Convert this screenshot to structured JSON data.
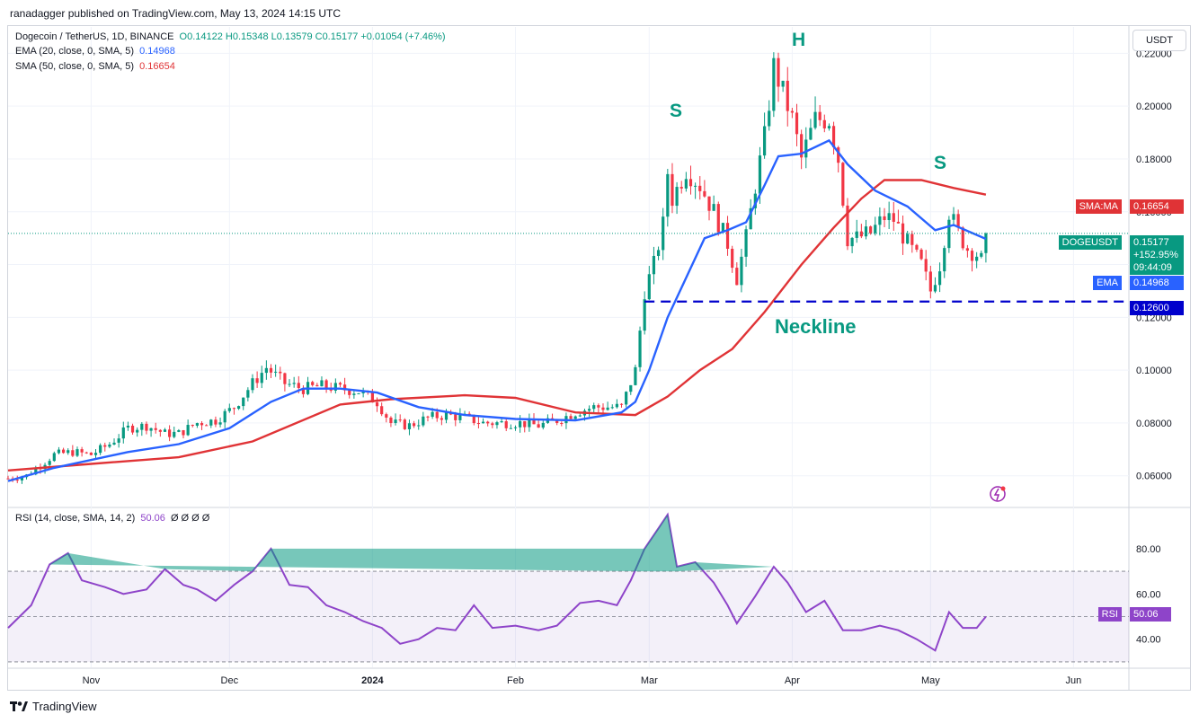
{
  "header": {
    "publisher": "ranadagger published on TradingView.com, May 13, 2024 14:15 UTC"
  },
  "legend": {
    "symbol": "Dogecoin / TetherUS, 1D, BINANCE",
    "ohlc": "O0.14122 H0.15348 L0.13579 C0.15177 +0.01054 (+7.46%)",
    "ema_label": "EMA (20, close, 0, SMA, 5)",
    "ema_value": "0.14968",
    "sma_label": "SMA (50, close, 0, SMA, 5)",
    "sma_value": "0.16654",
    "rsi_label": "RSI (14, close, SMA, 14, 2)",
    "rsi_value": "50.06",
    "rsi_extra": "Ø Ø Ø Ø"
  },
  "currency_button": "USDT",
  "tags": {
    "sma_name": "SMA:MA",
    "sma_price": "0.16654",
    "sym_name": "DOGEUSDT",
    "sym_price": "0.15177",
    "sym_change": "+152.95%",
    "sym_timer": "09:44:09",
    "ema_name": "EMA",
    "ema_price": "0.14968",
    "neck_price": "0.12600",
    "rsi_name": "RSI",
    "rsi_price": "50.06"
  },
  "annotations": {
    "left_shoulder": "S",
    "head": "H",
    "right_shoulder": "S",
    "neckline": "Neckline"
  },
  "colors": {
    "up": "#089981",
    "down": "#f23645",
    "ema": "#2962ff",
    "sma": "#e03336",
    "rsi": "#8e44c9",
    "neckline": "#0000cc",
    "grid": "#f0f3fa"
  },
  "branding": "TradingView",
  "chart_data": [
    {
      "type": "candlestick",
      "title": "Dogecoin / TetherUS, 1D, BINANCE",
      "y_ticks": [
        "0.06000",
        "0.08000",
        "0.10000",
        "0.12000",
        "0.14000",
        "0.16000",
        "0.18000",
        "0.20000",
        "0.22000"
      ],
      "x_ticks": [
        "Nov",
        "Dec",
        "2024",
        "Feb",
        "Mar",
        "Apr",
        "May",
        "Jun"
      ],
      "ylim": [
        0.048,
        0.23
      ],
      "x_range": [
        "2023-10-14",
        "2024-06-13"
      ],
      "price_close": [
        [
          "2023-10-14",
          0.059
        ],
        [
          "2023-10-18",
          0.06
        ],
        [
          "2023-10-21",
          0.064
        ],
        [
          "2023-10-24",
          0.068
        ],
        [
          "2023-10-28",
          0.069
        ],
        [
          "2023-11-01",
          0.068
        ],
        [
          "2023-11-05",
          0.072
        ],
        [
          "2023-11-09",
          0.078
        ],
        [
          "2023-11-13",
          0.079
        ],
        [
          "2023-11-17",
          0.076
        ],
        [
          "2023-11-20",
          0.076
        ],
        [
          "2023-11-24",
          0.08
        ],
        [
          "2023-11-28",
          0.081
        ],
        [
          "2023-12-02",
          0.086
        ],
        [
          "2023-12-06",
          0.095
        ],
        [
          "2023-12-09",
          0.101
        ],
        [
          "2023-12-13",
          0.095
        ],
        [
          "2023-12-17",
          0.093
        ],
        [
          "2023-12-21",
          0.094
        ],
        [
          "2023-12-25",
          0.093
        ],
        [
          "2023-12-29",
          0.092
        ],
        [
          "2024-01-02",
          0.088
        ],
        [
          "2024-01-05",
          0.08
        ],
        [
          "2024-01-09",
          0.079
        ],
        [
          "2024-01-13",
          0.082
        ],
        [
          "2024-01-17",
          0.083
        ],
        [
          "2024-01-21",
          0.082
        ],
        [
          "2024-01-25",
          0.08
        ],
        [
          "2024-01-29",
          0.08
        ],
        [
          "2024-02-02",
          0.08
        ],
        [
          "2024-02-06",
          0.079
        ],
        [
          "2024-02-10",
          0.081
        ],
        [
          "2024-02-14",
          0.084
        ],
        [
          "2024-02-18",
          0.086
        ],
        [
          "2024-02-21",
          0.086
        ],
        [
          "2024-02-24",
          0.086
        ],
        [
          "2024-02-27",
          0.1
        ],
        [
          "2024-02-29",
          0.13
        ],
        [
          "2024-03-02",
          0.14
        ],
        [
          "2024-03-04",
          0.155
        ],
        [
          "2024-03-05",
          0.175
        ],
        [
          "2024-03-06",
          0.165
        ],
        [
          "2024-03-09",
          0.176
        ],
        [
          "2024-03-12",
          0.17
        ],
        [
          "2024-03-15",
          0.16
        ],
        [
          "2024-03-18",
          0.148
        ],
        [
          "2024-03-20",
          0.135
        ],
        [
          "2024-03-22",
          0.15
        ],
        [
          "2024-03-24",
          0.17
        ],
        [
          "2024-03-26",
          0.188
        ],
        [
          "2024-03-28",
          0.215
        ],
        [
          "2024-03-30",
          0.205
        ],
        [
          "2024-04-01",
          0.195
        ],
        [
          "2024-04-03",
          0.18
        ],
        [
          "2024-04-06",
          0.195
        ],
        [
          "2024-04-09",
          0.195
        ],
        [
          "2024-04-11",
          0.18
        ],
        [
          "2024-04-13",
          0.15
        ],
        [
          "2024-04-15",
          0.15
        ],
        [
          "2024-04-18",
          0.152
        ],
        [
          "2024-04-21",
          0.158
        ],
        [
          "2024-04-23",
          0.157
        ],
        [
          "2024-04-26",
          0.148
        ],
        [
          "2024-04-29",
          0.14
        ],
        [
          "2024-05-01",
          0.13
        ],
        [
          "2024-05-03",
          0.14
        ],
        [
          "2024-05-05",
          0.16
        ],
        [
          "2024-05-07",
          0.152
        ],
        [
          "2024-05-09",
          0.146
        ],
        [
          "2024-05-11",
          0.144
        ],
        [
          "2024-05-12",
          0.1417
        ],
        [
          "2024-05-13",
          0.1518
        ]
      ],
      "ema20": [
        [
          "2023-10-14",
          0.058
        ],
        [
          "2023-10-24",
          0.063
        ],
        [
          "2023-11-09",
          0.069
        ],
        [
          "2023-11-20",
          0.072
        ],
        [
          "2023-12-01",
          0.078
        ],
        [
          "2023-12-10",
          0.088
        ],
        [
          "2023-12-17",
          0.093
        ],
        [
          "2023-12-25",
          0.093
        ],
        [
          "2024-01-02",
          0.0915
        ],
        [
          "2024-01-11",
          0.086
        ],
        [
          "2024-01-21",
          0.083
        ],
        [
          "2024-02-01",
          0.0815
        ],
        [
          "2024-02-14",
          0.081
        ],
        [
          "2024-02-24",
          0.084
        ],
        [
          "2024-02-27",
          0.088
        ],
        [
          "2024-03-01",
          0.1
        ],
        [
          "2024-03-05",
          0.12
        ],
        [
          "2024-03-09",
          0.135
        ],
        [
          "2024-03-13",
          0.15
        ],
        [
          "2024-03-18",
          0.153
        ],
        [
          "2024-03-22",
          0.156
        ],
        [
          "2024-03-26",
          0.17
        ],
        [
          "2024-03-29",
          0.181
        ],
        [
          "2024-04-03",
          0.182
        ],
        [
          "2024-04-09",
          0.187
        ],
        [
          "2024-04-13",
          0.178
        ],
        [
          "2024-04-19",
          0.168
        ],
        [
          "2024-04-26",
          0.162
        ],
        [
          "2024-05-02",
          0.153
        ],
        [
          "2024-05-06",
          0.155
        ],
        [
          "2024-05-13",
          0.1497
        ]
      ],
      "sma50": [
        [
          "2023-10-14",
          0.062
        ],
        [
          "2023-11-01",
          0.0645
        ],
        [
          "2023-11-20",
          0.067
        ],
        [
          "2023-12-06",
          0.073
        ],
        [
          "2023-12-25",
          0.087
        ],
        [
          "2024-01-05",
          0.089
        ],
        [
          "2024-01-21",
          0.0905
        ],
        [
          "2024-02-01",
          0.0895
        ],
        [
          "2024-02-14",
          0.084
        ],
        [
          "2024-02-27",
          0.083
        ],
        [
          "2024-03-05",
          0.09
        ],
        [
          "2024-03-12",
          0.1
        ],
        [
          "2024-03-19",
          0.108
        ],
        [
          "2024-03-26",
          0.122
        ],
        [
          "2024-04-03",
          0.14
        ],
        [
          "2024-04-10",
          0.154
        ],
        [
          "2024-04-16",
          0.165
        ],
        [
          "2024-04-21",
          0.172
        ],
        [
          "2024-04-29",
          0.172
        ],
        [
          "2024-05-06",
          0.169
        ],
        [
          "2024-05-13",
          0.1665
        ]
      ],
      "neckline": 0.126,
      "annotations": [
        {
          "label": "S",
          "x": "2024-03-05",
          "y": 0.201
        },
        {
          "label": "H",
          "x": "2024-03-30",
          "y": 0.222
        },
        {
          "label": "S",
          "x": "2024-05-05",
          "y": 0.18
        },
        {
          "label": "Neckline",
          "x": "2024-04-01",
          "y": 0.12
        }
      ]
    },
    {
      "type": "line",
      "title": "RSI (14, close, SMA, 14, 2)",
      "y_ticks": [
        "40.00",
        "60.00",
        "80.00"
      ],
      "ylim": [
        28,
        97
      ],
      "bands": [
        30,
        50,
        70
      ],
      "rsi": [
        [
          "2023-10-14",
          45
        ],
        [
          "2023-10-19",
          55
        ],
        [
          "2023-10-23",
          73
        ],
        [
          "2023-10-27",
          78
        ],
        [
          "2023-10-30",
          66
        ],
        [
          "2023-11-04",
          63
        ],
        [
          "2023-11-08",
          60
        ],
        [
          "2023-11-13",
          62
        ],
        [
          "2023-11-17",
          71
        ],
        [
          "2023-11-21",
          64
        ],
        [
          "2023-11-24",
          62
        ],
        [
          "2023-11-28",
          57
        ],
        [
          "2023-12-02",
          64
        ],
        [
          "2023-12-06",
          70
        ],
        [
          "2023-12-10",
          80
        ],
        [
          "2023-12-14",
          64
        ],
        [
          "2023-12-18",
          63
        ],
        [
          "2023-12-22",
          55
        ],
        [
          "2023-12-26",
          52
        ],
        [
          "2023-12-30",
          48
        ],
        [
          "2024-01-03",
          45
        ],
        [
          "2024-01-07",
          38
        ],
        [
          "2024-01-11",
          40
        ],
        [
          "2024-01-15",
          45
        ],
        [
          "2024-01-19",
          44
        ],
        [
          "2024-01-23",
          55
        ],
        [
          "2024-01-27",
          45
        ],
        [
          "2024-02-01",
          46
        ],
        [
          "2024-02-06",
          44
        ],
        [
          "2024-02-10",
          46
        ],
        [
          "2024-02-15",
          56
        ],
        [
          "2024-02-19",
          57
        ],
        [
          "2024-02-23",
          55
        ],
        [
          "2024-02-26",
          66
        ],
        [
          "2024-02-29",
          80
        ],
        [
          "2024-03-03",
          89
        ],
        [
          "2024-03-05",
          95
        ],
        [
          "2024-03-07",
          72
        ],
        [
          "2024-03-11",
          74
        ],
        [
          "2024-03-15",
          65
        ],
        [
          "2024-03-18",
          55
        ],
        [
          "2024-03-20",
          47
        ],
        [
          "2024-03-24",
          59
        ],
        [
          "2024-03-28",
          72
        ],
        [
          "2024-03-31",
          65
        ],
        [
          "2024-04-04",
          52
        ],
        [
          "2024-04-08",
          57
        ],
        [
          "2024-04-12",
          44
        ],
        [
          "2024-04-16",
          44
        ],
        [
          "2024-04-20",
          46
        ],
        [
          "2024-04-24",
          44
        ],
        [
          "2024-04-28",
          40
        ],
        [
          "2024-05-02",
          35
        ],
        [
          "2024-05-05",
          52
        ],
        [
          "2024-05-08",
          45
        ],
        [
          "2024-05-11",
          45
        ],
        [
          "2024-05-13",
          50
        ]
      ]
    }
  ]
}
